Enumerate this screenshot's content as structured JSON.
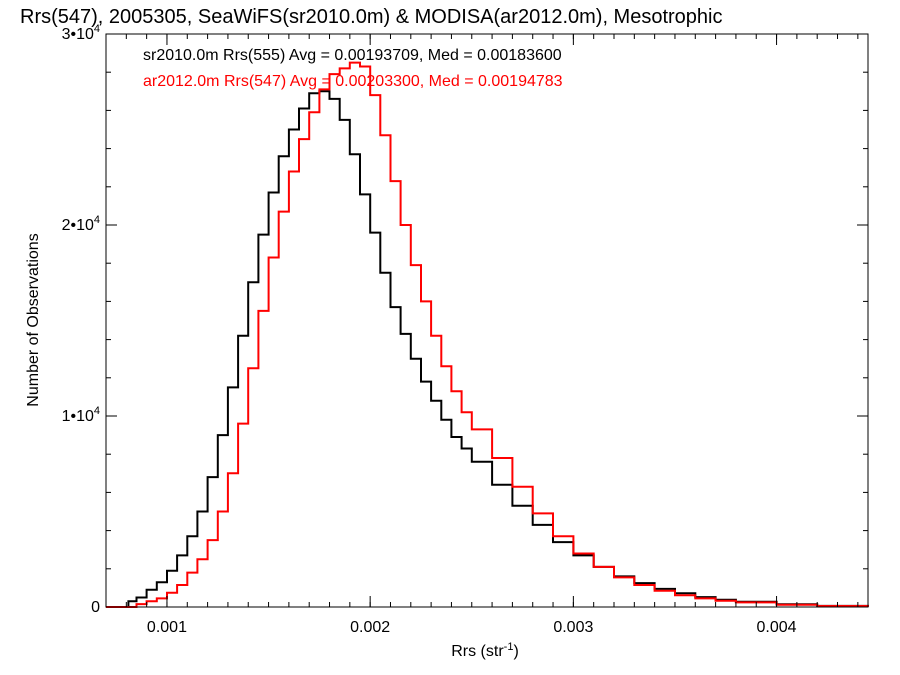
{
  "chart_data": {
    "type": "line",
    "title": "Rrs(547), 2005305, SeaWiFS(sr2010.0m) & MODISA(ar2012.0m), Mesotrophic",
    "xlabel_main": "Rrs (str",
    "xlabel_sup": "-1",
    "xlabel_close": ")",
    "ylabel": "Number of Observations",
    "xlim": [
      0.0007,
      0.00445
    ],
    "ylim": [
      0,
      30000
    ],
    "xticks": [
      {
        "value": 0.001,
        "label": "0.001"
      },
      {
        "value": 0.002,
        "label": "0.002"
      },
      {
        "value": 0.003,
        "label": "0.003"
      },
      {
        "value": 0.004,
        "label": "0.004"
      }
    ],
    "x_minor_step": 0.0001,
    "yticks": [
      {
        "value": 0,
        "base": "0",
        "exp": ""
      },
      {
        "value": 10000,
        "base": "1•10",
        "exp": "4"
      },
      {
        "value": 20000,
        "base": "2•10",
        "exp": "4"
      },
      {
        "value": 30000,
        "base": "3•10",
        "exp": "4"
      }
    ],
    "y_minor_step": 2000,
    "grid": false,
    "legend_position": "top-left",
    "series": [
      {
        "name": "sr2010.0m Rrs(555) Avg = 0.00193709, Med = 0.00183600",
        "color": "#000000",
        "x": [
          0.0007,
          0.0008,
          0.00081,
          0.00085,
          0.0009,
          0.00095,
          0.001,
          0.00105,
          0.0011,
          0.00115,
          0.0012,
          0.00125,
          0.0013,
          0.00135,
          0.0014,
          0.00145,
          0.0015,
          0.00155,
          0.0016,
          0.00165,
          0.0017,
          0.00175,
          0.0018,
          0.00185,
          0.0019,
          0.00195,
          0.002,
          0.00205,
          0.0021,
          0.00215,
          0.0022,
          0.00225,
          0.0023,
          0.00235,
          0.0024,
          0.00245,
          0.0025,
          0.0026,
          0.0027,
          0.0028,
          0.0029,
          0.003,
          0.0031,
          0.0032,
          0.0033,
          0.0034,
          0.0035,
          0.0036,
          0.0037,
          0.0038,
          0.004,
          0.0042,
          0.00445
        ],
        "y": [
          0,
          0,
          300,
          500,
          900,
          1300,
          1900,
          2700,
          3700,
          5000,
          6800,
          9000,
          11500,
          14200,
          17000,
          19500,
          21700,
          23600,
          25000,
          26100,
          26900,
          27000,
          26600,
          25500,
          23700,
          21600,
          19600,
          17500,
          15700,
          14300,
          13000,
          11800,
          10800,
          9800,
          8900,
          8300,
          7600,
          6400,
          5300,
          4300,
          3400,
          2700,
          2100,
          1600,
          1250,
          950,
          720,
          520,
          380,
          280,
          140,
          60,
          10
        ]
      },
      {
        "name": "ar2012.0m Rrs(547) Avg = 0.00203300, Med = 0.00194783",
        "color": "#ff0000",
        "x": [
          0.0007,
          0.00082,
          0.00085,
          0.0009,
          0.00095,
          0.001,
          0.00105,
          0.0011,
          0.00115,
          0.0012,
          0.00125,
          0.0013,
          0.00135,
          0.0014,
          0.00145,
          0.0015,
          0.00155,
          0.0016,
          0.00165,
          0.0017,
          0.00175,
          0.0018,
          0.00185,
          0.0019,
          0.00195,
          0.002,
          0.00205,
          0.0021,
          0.00215,
          0.0022,
          0.00225,
          0.0023,
          0.00235,
          0.0024,
          0.00245,
          0.0025,
          0.0026,
          0.0027,
          0.0028,
          0.0029,
          0.003,
          0.0031,
          0.0032,
          0.0033,
          0.0034,
          0.0035,
          0.0036,
          0.0037,
          0.0038,
          0.004,
          0.0042,
          0.00445
        ],
        "y": [
          0,
          0,
          150,
          300,
          450,
          750,
          1150,
          1800,
          2500,
          3500,
          5000,
          7000,
          9600,
          12500,
          15500,
          18300,
          20700,
          22800,
          24500,
          25900,
          27100,
          27900,
          28200,
          28500,
          28300,
          26800,
          24700,
          22300,
          20000,
          17900,
          16000,
          14200,
          12600,
          11300,
          10200,
          9300,
          7800,
          6300,
          4900,
          3700,
          2800,
          2100,
          1550,
          1150,
          850,
          620,
          450,
          330,
          240,
          120,
          50,
          10
        ]
      }
    ]
  }
}
